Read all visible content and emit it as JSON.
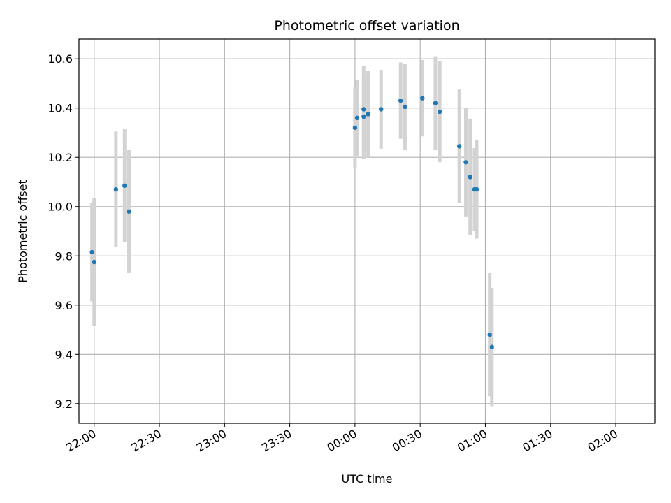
{
  "chart_data": {
    "type": "scatter",
    "title": "Photometric offset variation",
    "xlabel": "UTC time",
    "ylabel": "Photometric offset",
    "x_unit": "HH:MM (UTC)",
    "xlim": [
      "21:53",
      "02:18"
    ],
    "ylim": [
      9.12,
      10.68
    ],
    "x_ticks": [
      "22:00",
      "22:30",
      "23:00",
      "23:30",
      "00:00",
      "00:30",
      "01:00",
      "01:30",
      "02:00"
    ],
    "y_ticks": [
      9.2,
      9.4,
      9.6,
      9.8,
      10.0,
      10.2,
      10.4,
      10.6
    ],
    "y_tick_labels": [
      "9.2",
      "9.4",
      "9.6",
      "9.8",
      "10.0",
      "10.2",
      "10.4",
      "10.6"
    ],
    "grid": true,
    "point_color": "#1f77b4",
    "errorbar_color": "#d3d3d3",
    "points": [
      {
        "x": "21:59",
        "y": 9.815,
        "yerr": 0.2
      },
      {
        "x": "22:00",
        "y": 9.775,
        "yerr": 0.26
      },
      {
        "x": "22:10",
        "y": 10.07,
        "yerr": 0.235
      },
      {
        "x": "22:14",
        "y": 10.085,
        "yerr": 0.23
      },
      {
        "x": "22:16",
        "y": 9.98,
        "yerr": 0.25
      },
      {
        "x": "00:00",
        "y": 10.32,
        "yerr": 0.165
      },
      {
        "x": "00:01",
        "y": 10.36,
        "yerr": 0.155
      },
      {
        "x": "00:04",
        "y": 10.395,
        "yerr": 0.175
      },
      {
        "x": "00:04",
        "y": 10.365,
        "yerr": 0.17
      },
      {
        "x": "00:06",
        "y": 10.375,
        "yerr": 0.175
      },
      {
        "x": "00:12",
        "y": 10.395,
        "yerr": 0.16
      },
      {
        "x": "00:21",
        "y": 10.43,
        "yerr": 0.155
      },
      {
        "x": "00:23",
        "y": 10.405,
        "yerr": 0.175
      },
      {
        "x": "00:31",
        "y": 10.44,
        "yerr": 0.155
      },
      {
        "x": "00:37",
        "y": 10.42,
        "yerr": 0.19
      },
      {
        "x": "00:39",
        "y": 10.385,
        "yerr": 0.205
      },
      {
        "x": "00:48",
        "y": 10.245,
        "yerr": 0.23
      },
      {
        "x": "00:51",
        "y": 10.18,
        "yerr": 0.22
      },
      {
        "x": "00:53",
        "y": 10.12,
        "yerr": 0.235
      },
      {
        "x": "00:55",
        "y": 10.07,
        "yerr": 0.168
      },
      {
        "x": "00:56",
        "y": 10.07,
        "yerr": 0.2
      },
      {
        "x": "01:02",
        "y": 9.48,
        "yerr": 0.25
      },
      {
        "x": "01:03",
        "y": 9.43,
        "yerr": 0.24
      }
    ]
  }
}
